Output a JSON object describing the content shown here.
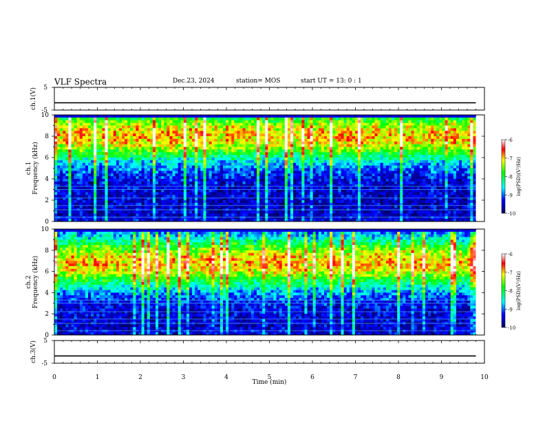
{
  "header": {
    "title": "VLF Spectra",
    "date": "Dec.23, 2024",
    "station": "station= MOS",
    "start": "start  UT =   13: 0  : 1"
  },
  "chart_data": [
    {
      "type": "line",
      "name": "ch1-voltage",
      "ylabel": "ch.1(V)",
      "ylim": [
        -5,
        5
      ],
      "yticks": [
        "5",
        "-5"
      ],
      "x": [
        0,
        9.8
      ],
      "values": [
        -1.8,
        -1.8
      ],
      "xlim": [
        0,
        10
      ]
    },
    {
      "type": "heatmap",
      "name": "ch1-spectrogram",
      "ylabel": "ch.1\nFrequency (kHz)",
      "xlim": [
        0,
        9.8
      ],
      "ylim": [
        0,
        10
      ],
      "yticks": [
        "0",
        "2",
        "4",
        "6",
        "8",
        "10"
      ],
      "intense_band_khz": [
        5.5,
        10
      ],
      "colorbar": {
        "label": "log(PSD)(V²/Hz)",
        "range": [
          -10,
          -6
        ],
        "ticks": [
          "-6",
          "-7",
          "-8",
          "-9",
          "-10"
        ]
      }
    },
    {
      "type": "heatmap",
      "name": "ch2-spectrogram",
      "ylabel": "ch.2\nFrequency (kHz)",
      "xlim": [
        0,
        9.8
      ],
      "ylim": [
        0,
        10
      ],
      "yticks": [
        "0",
        "2",
        "4",
        "6",
        "8",
        "10"
      ],
      "intense_band_khz": [
        4.5,
        9
      ],
      "colorbar": {
        "label": "log(PSD)(V²/Hz)",
        "range": [
          -10,
          -6
        ],
        "ticks": [
          "-6",
          "-7",
          "-8",
          "-9",
          "-10"
        ]
      }
    },
    {
      "type": "line",
      "name": "ch3-voltage",
      "ylabel": "ch.3(V)",
      "ylim": [
        -5,
        5
      ],
      "yticks": [
        "5",
        "-5"
      ],
      "x": [
        0,
        9.8
      ],
      "values": [
        -1.8,
        -1.8
      ],
      "xlim": [
        0,
        10
      ]
    }
  ],
  "xaxis": {
    "label": "Time  (min)",
    "ticks": [
      "0",
      "1",
      "2",
      "3",
      "4",
      "5",
      "6",
      "7",
      "8",
      "9",
      "10"
    ]
  },
  "colors": {
    "background": "#000000",
    "low": "#00007a",
    "high": "#ff0000"
  }
}
